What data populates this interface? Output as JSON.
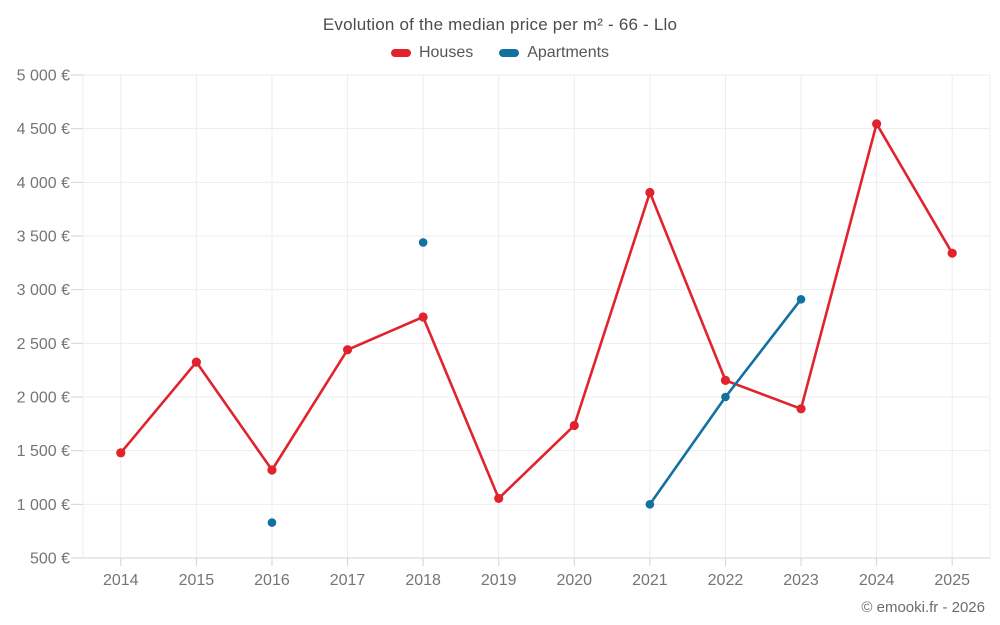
{
  "chart_data": {
    "type": "line",
    "title": "Evolution of the median price per m² - 66 - Llo",
    "categories": [
      "2014",
      "2015",
      "2016",
      "2017",
      "2018",
      "2019",
      "2020",
      "2021",
      "2022",
      "2023",
      "2024",
      "2025"
    ],
    "series": [
      {
        "name": "Houses",
        "color": "#e1232e",
        "values": [
          1480,
          2325,
          1320,
          2440,
          2745,
          1055,
          1735,
          3905,
          2155,
          1890,
          4545,
          3340
        ]
      },
      {
        "name": "Apartments",
        "color": "#1371a0",
        "values": [
          null,
          null,
          830,
          null,
          3440,
          null,
          null,
          1000,
          2000,
          2910,
          null,
          null
        ]
      }
    ],
    "xlabel": "",
    "ylabel": "",
    "ylim": [
      500,
      5000
    ],
    "ytick_step": 500,
    "ytick_suffix": "€",
    "ytick_thousands_separator": " ",
    "grid": true,
    "legend_position": "top",
    "gap_handling": "isolated points are drawn as dots without connecting lines"
  },
  "footer": {
    "text": "© emooki.fr - 2026"
  }
}
